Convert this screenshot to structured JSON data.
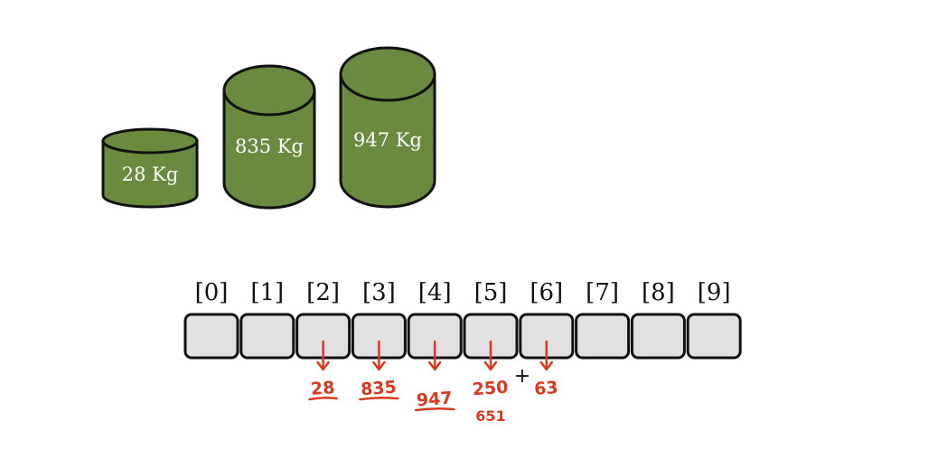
{
  "colors": {
    "cylinder_fill": "#6a8b3f",
    "outline": "#111111",
    "cell_fill": "#e1e1e1",
    "annotation_red": "#d9391f",
    "text_light": "#ffffff",
    "text_dark": "#111111"
  },
  "cylinders": [
    {
      "label": "28 Kg"
    },
    {
      "label": "835 Kg"
    },
    {
      "label": "947 Kg"
    }
  ],
  "array": {
    "indices": [
      "[0]",
      "[1]",
      "[2]",
      "[3]",
      "[4]",
      "[5]",
      "[6]",
      "[7]",
      "[8]",
      "[9]"
    ]
  },
  "annotations": [
    {
      "cell": 2,
      "text": "28",
      "underline": true
    },
    {
      "cell": 3,
      "text": "835",
      "underline": true
    },
    {
      "cell": 4,
      "text": "947",
      "underline": true
    },
    {
      "cell": 5,
      "text": "250",
      "underline": false,
      "sub": "651"
    },
    {
      "cell": 6,
      "text": "63",
      "underline": false
    }
  ],
  "plus_sign": "+"
}
